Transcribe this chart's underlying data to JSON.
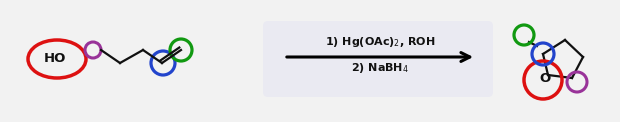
{
  "bg_color": "#f2f2f2",
  "arrow_box_color": "#eaeaf2",
  "arrow_line_color": "#000000",
  "circle_red": "#dd1111",
  "circle_purple": "#993399",
  "circle_blue": "#2244cc",
  "circle_green": "#119911",
  "bond_color": "#111111",
  "text_color": "#111111",
  "O_text": "O",
  "HO_text": "HO"
}
